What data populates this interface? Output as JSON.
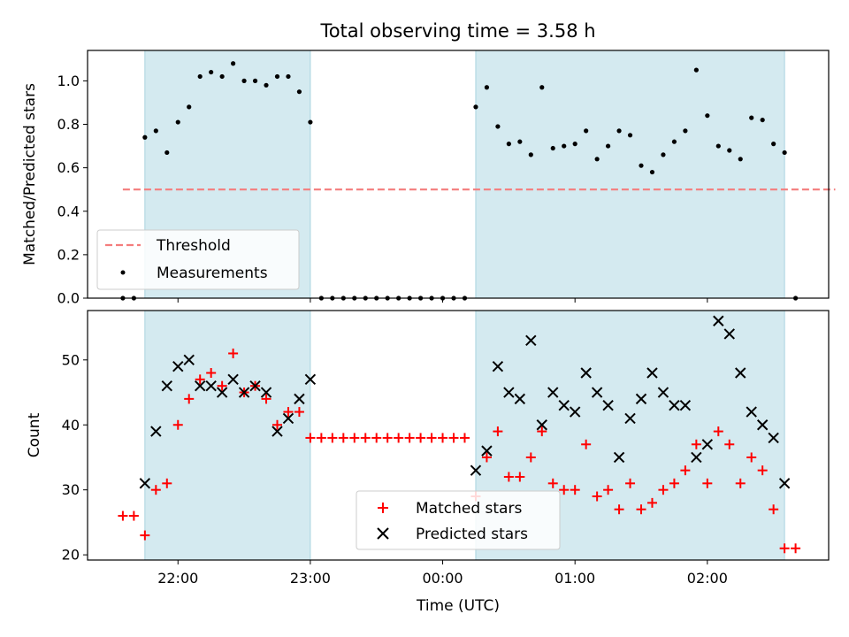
{
  "title": "Total observing time = 3.58 h",
  "colors": {
    "shade": "#d4eaf0",
    "shade_edge": "#a9d3df",
    "threshold": "#f47d7d",
    "measurement": "#000000",
    "matched": "#ff0000",
    "predicted": "#000000"
  },
  "chart_data": [
    {
      "type": "scatter",
      "ylabel": "Matched/Predicted stars",
      "xlim": [
        "21:19",
        "02:55"
      ],
      "ylim": [
        0,
        1.14
      ],
      "yticks": [
        "0.0",
        "0.2",
        "0.4",
        "0.6",
        "0.8",
        "1.0"
      ],
      "x_ticks_shown_without_labels": true,
      "grid": false,
      "legend_location": "lower-left",
      "legend": [
        "Threshold",
        "Measurements"
      ],
      "threshold": {
        "name": "Threshold",
        "value": 0.5,
        "x_range": [
          "21:35",
          "02:58"
        ],
        "style": "dashed"
      },
      "shaded_intervals": [
        [
          "21:45",
          "23:00"
        ],
        [
          "00:15",
          "02:35"
        ]
      ],
      "series": [
        {
          "name": "Measurements",
          "marker": "dot",
          "points": [
            [
              "21:35",
              0.0
            ],
            [
              "21:40",
              0.0
            ],
            [
              "21:45",
              0.74
            ],
            [
              "21:50",
              0.77
            ],
            [
              "21:55",
              0.67
            ],
            [
              "22:00",
              0.81
            ],
            [
              "22:05",
              0.88
            ],
            [
              "22:10",
              1.02
            ],
            [
              "22:15",
              1.04
            ],
            [
              "22:20",
              1.02
            ],
            [
              "22:25",
              1.08
            ],
            [
              "22:30",
              1.0
            ],
            [
              "22:35",
              1.0
            ],
            [
              "22:40",
              0.98
            ],
            [
              "22:45",
              1.02
            ],
            [
              "22:50",
              1.02
            ],
            [
              "22:55",
              0.95
            ],
            [
              "23:00",
              0.81
            ],
            [
              "23:05",
              0.0
            ],
            [
              "23:10",
              0.0
            ],
            [
              "23:15",
              0.0
            ],
            [
              "23:20",
              0.0
            ],
            [
              "23:25",
              0.0
            ],
            [
              "23:30",
              0.0
            ],
            [
              "23:35",
              0.0
            ],
            [
              "23:40",
              0.0
            ],
            [
              "23:45",
              0.0
            ],
            [
              "23:50",
              0.0
            ],
            [
              "23:55",
              0.0
            ],
            [
              "00:00",
              0.0
            ],
            [
              "00:05",
              0.0
            ],
            [
              "00:10",
              0.0
            ],
            [
              "00:15",
              0.88
            ],
            [
              "00:20",
              0.97
            ],
            [
              "00:25",
              0.79
            ],
            [
              "00:30",
              0.71
            ],
            [
              "00:35",
              0.72
            ],
            [
              "00:40",
              0.66
            ],
            [
              "00:45",
              0.97
            ],
            [
              "00:50",
              0.69
            ],
            [
              "00:55",
              0.7
            ],
            [
              "01:00",
              0.71
            ],
            [
              "01:05",
              0.77
            ],
            [
              "01:10",
              0.64
            ],
            [
              "01:15",
              0.7
            ],
            [
              "01:20",
              0.77
            ],
            [
              "01:25",
              0.75
            ],
            [
              "01:30",
              0.61
            ],
            [
              "01:35",
              0.58
            ],
            [
              "01:40",
              0.66
            ],
            [
              "01:45",
              0.72
            ],
            [
              "01:50",
              0.77
            ],
            [
              "01:55",
              1.05
            ],
            [
              "02:00",
              0.84
            ],
            [
              "02:05",
              0.7
            ],
            [
              "02:10",
              0.68
            ],
            [
              "02:15",
              0.64
            ],
            [
              "02:20",
              0.83
            ],
            [
              "02:25",
              0.82
            ],
            [
              "02:30",
              0.71
            ],
            [
              "02:35",
              0.67
            ],
            [
              "02:40",
              0.0
            ]
          ]
        }
      ]
    },
    {
      "type": "scatter",
      "xlabel": "Time (UTC)",
      "ylabel": "Count",
      "xticks": [
        "22:00",
        "23:00",
        "00:00",
        "01:00",
        "02:00"
      ],
      "xlim": [
        "21:19",
        "02:55"
      ],
      "ylim": [
        19.2,
        57.6
      ],
      "yticks": [
        "20",
        "30",
        "40",
        "50"
      ],
      "grid": false,
      "legend_location": "lower-center",
      "legend": [
        "Matched stars",
        "Predicted stars"
      ],
      "shaded_intervals": [
        [
          "21:45",
          "23:00"
        ],
        [
          "00:15",
          "02:35"
        ]
      ],
      "series": [
        {
          "name": "Matched stars",
          "marker": "plus",
          "points": [
            [
              "21:35",
              26
            ],
            [
              "21:40",
              26
            ],
            [
              "21:45",
              23
            ],
            [
              "21:50",
              30
            ],
            [
              "21:55",
              31
            ],
            [
              "22:00",
              40
            ],
            [
              "22:05",
              44
            ],
            [
              "22:10",
              47
            ],
            [
              "22:15",
              48
            ],
            [
              "22:20",
              46
            ],
            [
              "22:25",
              51
            ],
            [
              "22:30",
              45
            ],
            [
              "22:35",
              46
            ],
            [
              "22:40",
              44
            ],
            [
              "22:45",
              40
            ],
            [
              "22:50",
              42
            ],
            [
              "22:55",
              42
            ],
            [
              "23:00",
              38
            ],
            [
              "23:05",
              38
            ],
            [
              "23:10",
              38
            ],
            [
              "23:15",
              38
            ],
            [
              "23:20",
              38
            ],
            [
              "23:25",
              38
            ],
            [
              "23:30",
              38
            ],
            [
              "23:35",
              38
            ],
            [
              "23:40",
              38
            ],
            [
              "23:45",
              38
            ],
            [
              "23:50",
              38
            ],
            [
              "23:55",
              38
            ],
            [
              "00:00",
              38
            ],
            [
              "00:05",
              38
            ],
            [
              "00:10",
              38
            ],
            [
              "00:15",
              29
            ],
            [
              "00:20",
              35
            ],
            [
              "00:25",
              39
            ],
            [
              "00:30",
              32
            ],
            [
              "00:35",
              32
            ],
            [
              "00:40",
              35
            ],
            [
              "00:45",
              39
            ],
            [
              "00:50",
              31
            ],
            [
              "00:55",
              30
            ],
            [
              "01:00",
              30
            ],
            [
              "01:05",
              37
            ],
            [
              "01:10",
              29
            ],
            [
              "01:15",
              30
            ],
            [
              "01:20",
              27
            ],
            [
              "01:25",
              31
            ],
            [
              "01:30",
              27
            ],
            [
              "01:35",
              28
            ],
            [
              "01:40",
              30
            ],
            [
              "01:45",
              31
            ],
            [
              "01:50",
              33
            ],
            [
              "01:55",
              37
            ],
            [
              "02:00",
              31
            ],
            [
              "02:05",
              39
            ],
            [
              "02:10",
              37
            ],
            [
              "02:15",
              31
            ],
            [
              "02:20",
              35
            ],
            [
              "02:25",
              33
            ],
            [
              "02:30",
              27
            ],
            [
              "02:35",
              21
            ],
            [
              "02:40",
              21
            ]
          ]
        },
        {
          "name": "Predicted stars",
          "marker": "x",
          "points": [
            [
              "21:45",
              31
            ],
            [
              "21:50",
              39
            ],
            [
              "21:55",
              46
            ],
            [
              "22:00",
              49
            ],
            [
              "22:05",
              50
            ],
            [
              "22:10",
              46
            ],
            [
              "22:15",
              46
            ],
            [
              "22:20",
              45
            ],
            [
              "22:25",
              47
            ],
            [
              "22:30",
              45
            ],
            [
              "22:35",
              46
            ],
            [
              "22:40",
              45
            ],
            [
              "22:45",
              39
            ],
            [
              "22:50",
              41
            ],
            [
              "22:55",
              44
            ],
            [
              "23:00",
              47
            ],
            [
              "00:15",
              33
            ],
            [
              "00:20",
              36
            ],
            [
              "00:25",
              49
            ],
            [
              "00:30",
              45
            ],
            [
              "00:35",
              44
            ],
            [
              "00:40",
              53
            ],
            [
              "00:45",
              40
            ],
            [
              "00:50",
              45
            ],
            [
              "00:55",
              43
            ],
            [
              "01:00",
              42
            ],
            [
              "01:05",
              48
            ],
            [
              "01:10",
              45
            ],
            [
              "01:15",
              43
            ],
            [
              "01:20",
              35
            ],
            [
              "01:25",
              41
            ],
            [
              "01:30",
              44
            ],
            [
              "01:35",
              48
            ],
            [
              "01:40",
              45
            ],
            [
              "01:45",
              43
            ],
            [
              "01:50",
              43
            ],
            [
              "01:55",
              35
            ],
            [
              "02:00",
              37
            ],
            [
              "02:05",
              56
            ],
            [
              "02:10",
              54
            ],
            [
              "02:15",
              48
            ],
            [
              "02:20",
              42
            ],
            [
              "02:25",
              40
            ],
            [
              "02:30",
              38
            ],
            [
              "02:35",
              31
            ]
          ]
        }
      ]
    }
  ]
}
